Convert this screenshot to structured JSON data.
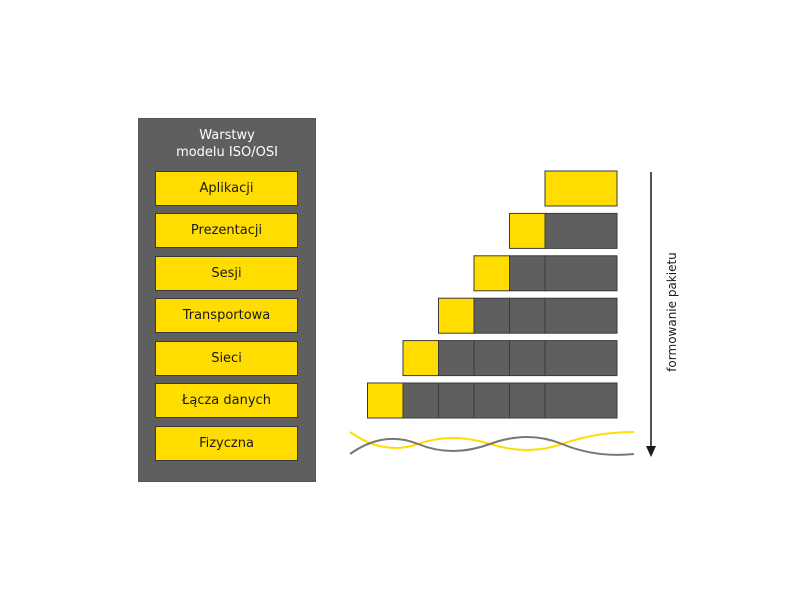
{
  "panel": {
    "title_line1": "Warstwy",
    "title_line2": "modelu ISO/OSI"
  },
  "layers": [
    {
      "label": "Aplikacji"
    },
    {
      "label": "Prezentacji"
    },
    {
      "label": "Sesji"
    },
    {
      "label": "Transportowa"
    },
    {
      "label": "Sieci"
    },
    {
      "label": "Łącza danych"
    },
    {
      "label": "Fizyczna"
    }
  ],
  "packets": [
    {
      "headers": 0
    },
    {
      "headers": 1
    },
    {
      "headers": 2
    },
    {
      "headers": 3
    },
    {
      "headers": 4
    },
    {
      "headers": 5
    }
  ],
  "axis": {
    "label": "formowanie pakietu"
  },
  "colors": {
    "yellow": "#ffdd00",
    "gray": "#5f5f5f",
    "border": "#3a3a3a",
    "wave_gray": "#777777"
  }
}
